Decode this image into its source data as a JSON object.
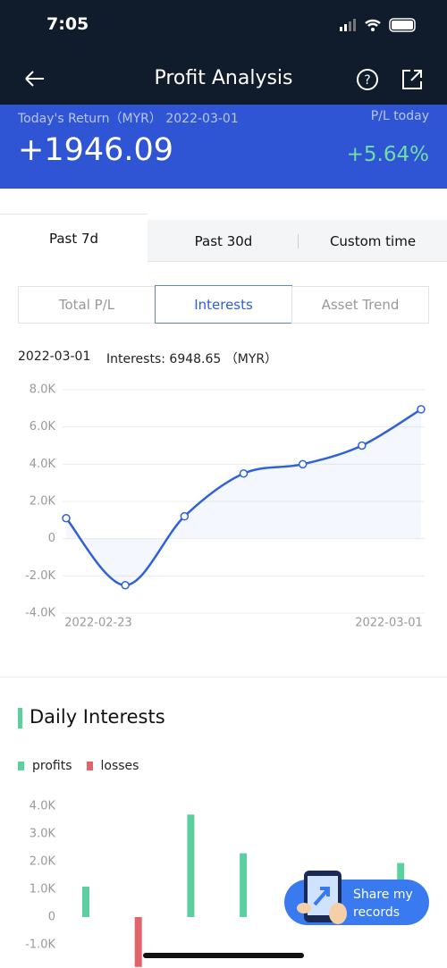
{
  "status": {
    "time": "7:05"
  },
  "header": {
    "title": "Profit Analysis"
  },
  "summary": {
    "label": "Today's Return（MYR）",
    "date": "2022-03-01",
    "change_label": "P/L today",
    "value": "+1946.09",
    "change": "+5.64%"
  },
  "tabs": [
    "Past 7d",
    "Past 30d",
    "Custom time"
  ],
  "subtabs": [
    "Total P/L",
    "Interests",
    "Asset Trend"
  ],
  "chart_data": [
    {
      "type": "line",
      "info_date": "2022-03-01",
      "info_text": "Interests: 6948.65 （MYR）",
      "categories": [
        "2022-02-23",
        null,
        null,
        null,
        null,
        null,
        "2022-03-01"
      ],
      "values": [
        1100,
        -2500,
        1200,
        3500,
        4000,
        5000,
        6948.65
      ],
      "color": "#2f62d8",
      "ylim": [
        -4000,
        8000
      ],
      "yticks": [
        {
          "value": 8000,
          "label": "8.0K"
        },
        {
          "value": 6000,
          "label": "6.0K"
        },
        {
          "value": 4000,
          "label": "4.0K"
        },
        {
          "value": 2000,
          "label": "2.0K"
        },
        0,
        {
          "value": -2000,
          "label": "-2.0K"
        },
        {
          "value": -4000,
          "label": "-4.0K"
        }
      ],
      "grid": true
    },
    {
      "type": "bar",
      "title": "Daily Interests",
      "categories": [
        null,
        null,
        null,
        null,
        null,
        null,
        null
      ],
      "series": [
        {
          "name": "profits",
          "color": "#5ccf9f",
          "values": [
            1100,
            null,
            3700,
            2300,
            null,
            null,
            1950
          ]
        },
        {
          "name": "losses",
          "color": "#e0646a",
          "values": [
            null,
            -1800,
            null,
            null,
            null,
            null,
            null
          ]
        }
      ],
      "ylim": [
        -2000,
        4000
      ],
      "yticks": [
        {
          "value": 4000,
          "label": "4.0K"
        },
        {
          "value": 3000,
          "label": "3.0K"
        },
        {
          "value": 2000,
          "label": "2.0K"
        },
        {
          "value": 1000,
          "label": "1.0K"
        },
        0,
        {
          "value": -1000,
          "label": "-1.0K"
        }
      ],
      "grid": false
    }
  ],
  "share": {
    "lines": [
      "Share my",
      "records"
    ]
  }
}
